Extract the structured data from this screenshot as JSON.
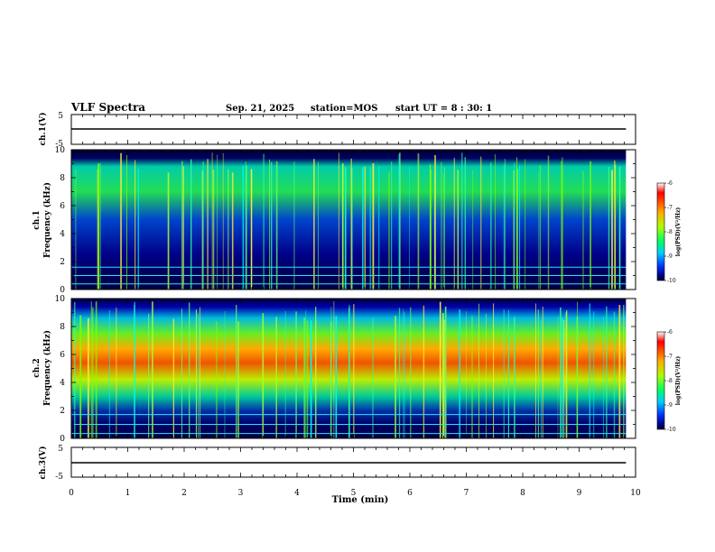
{
  "header": {
    "title": "VLF Spectra",
    "date": "Sep. 21, 2025",
    "station": "station=MOS",
    "start": "start UT =  8 : 30: 1"
  },
  "chart_data": [
    {
      "type": "line",
      "name": "ch1-waveform",
      "ylabel": "ch.1(V)",
      "ylim": [
        -5,
        5
      ],
      "ticks": [
        "5",
        "-5"
      ],
      "value": 0
    },
    {
      "type": "heatmap",
      "name": "ch1-spectrogram",
      "ylabel_line1": "ch.1",
      "ylabel_line2": "Frequency (kHz)",
      "ylim": [
        0,
        10
      ],
      "yticks": [
        "0",
        "2",
        "4",
        "6",
        "8",
        "10"
      ],
      "colorbar": {
        "label": "log(PSD)(V²/Hz)",
        "ticks": [
          "-6",
          "-7",
          "-8",
          "-9",
          "-10"
        ]
      }
    },
    {
      "type": "heatmap",
      "name": "ch2-spectrogram",
      "ylabel_line1": "ch.2",
      "ylabel_line2": "Frequency (kHz)",
      "ylim": [
        0,
        10
      ],
      "yticks": [
        "0",
        "2",
        "4",
        "6",
        "8",
        "10"
      ],
      "colorbar": {
        "label": "log(PSD)(V²/Hz)",
        "ticks": [
          "-6",
          "-7",
          "-8",
          "-9",
          "-10"
        ]
      }
    },
    {
      "type": "line",
      "name": "ch3-waveform",
      "ylabel": "ch.3(V)",
      "ylim": [
        -5,
        5
      ],
      "ticks": [
        "5",
        "-5"
      ],
      "value": 0
    }
  ],
  "xaxis": {
    "label": "Time (min)",
    "xlim": [
      0,
      10
    ],
    "ticks": [
      "0",
      "1",
      "2",
      "3",
      "4",
      "5",
      "6",
      "7",
      "8",
      "9",
      "10"
    ],
    "data_end": 9.83
  },
  "colors": {
    "background": "#ffffff",
    "axis": "#000000",
    "spectro_low": "#00008b",
    "spectro_high": "#ff0000"
  }
}
